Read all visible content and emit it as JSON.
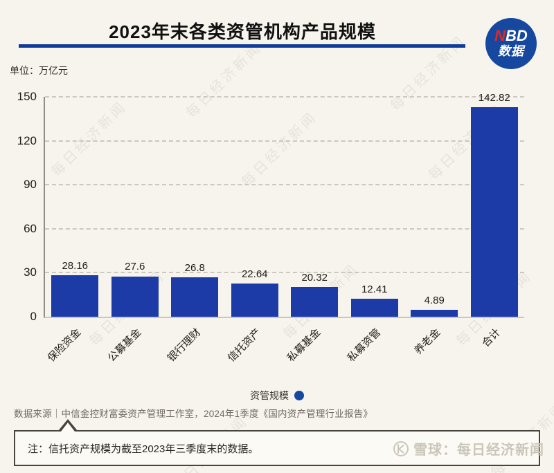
{
  "header": {
    "title": "2023年末各类资管机构产品规模",
    "logo": {
      "part_n": "N",
      "part_bd": "BD",
      "line2": "数据"
    }
  },
  "unit_label": "单位：万亿元",
  "chart_data": {
    "type": "bar",
    "title": "2023年末各类资管机构产品规模",
    "unit": "万亿元",
    "categories": [
      "保险资金",
      "公募基金",
      "银行理财",
      "信托资产",
      "私募基金",
      "私募资管",
      "养老金",
      "合计"
    ],
    "values": [
      28.16,
      27.6,
      26.8,
      22.64,
      20.32,
      12.41,
      4.89,
      142.82
    ],
    "value_labels": [
      "28.16",
      "27.6",
      "26.8",
      "22.64",
      "20.32",
      "12.41",
      "4.89",
      "142.82"
    ],
    "series_name": "资管规模",
    "xlabel": "",
    "ylabel": "万亿元",
    "ylim": [
      0,
      150
    ],
    "yticks": [
      0,
      30,
      60,
      90,
      120,
      150
    ],
    "grid": "horizontal-dashed",
    "bar_color": "#1c3ba7",
    "legend_position": "bottom-center"
  },
  "legend": {
    "label": "资管规模"
  },
  "source": "数据来源｜中信金控财富委资产管理工作室，2024年1季度《国内资产管理行业报告》",
  "note": "注：信托资产规模为截至2023年三季度末的数据。",
  "watermark": {
    "text": "每日经济新闻",
    "footer_brand": "雪球：每日经济新闻"
  },
  "colors": {
    "background": "#f7f4ed",
    "bar": "#1c3ba7",
    "title_underline": "#0d3d99",
    "logo_circle": "#15489e",
    "logo_n": "#e6261f"
  }
}
